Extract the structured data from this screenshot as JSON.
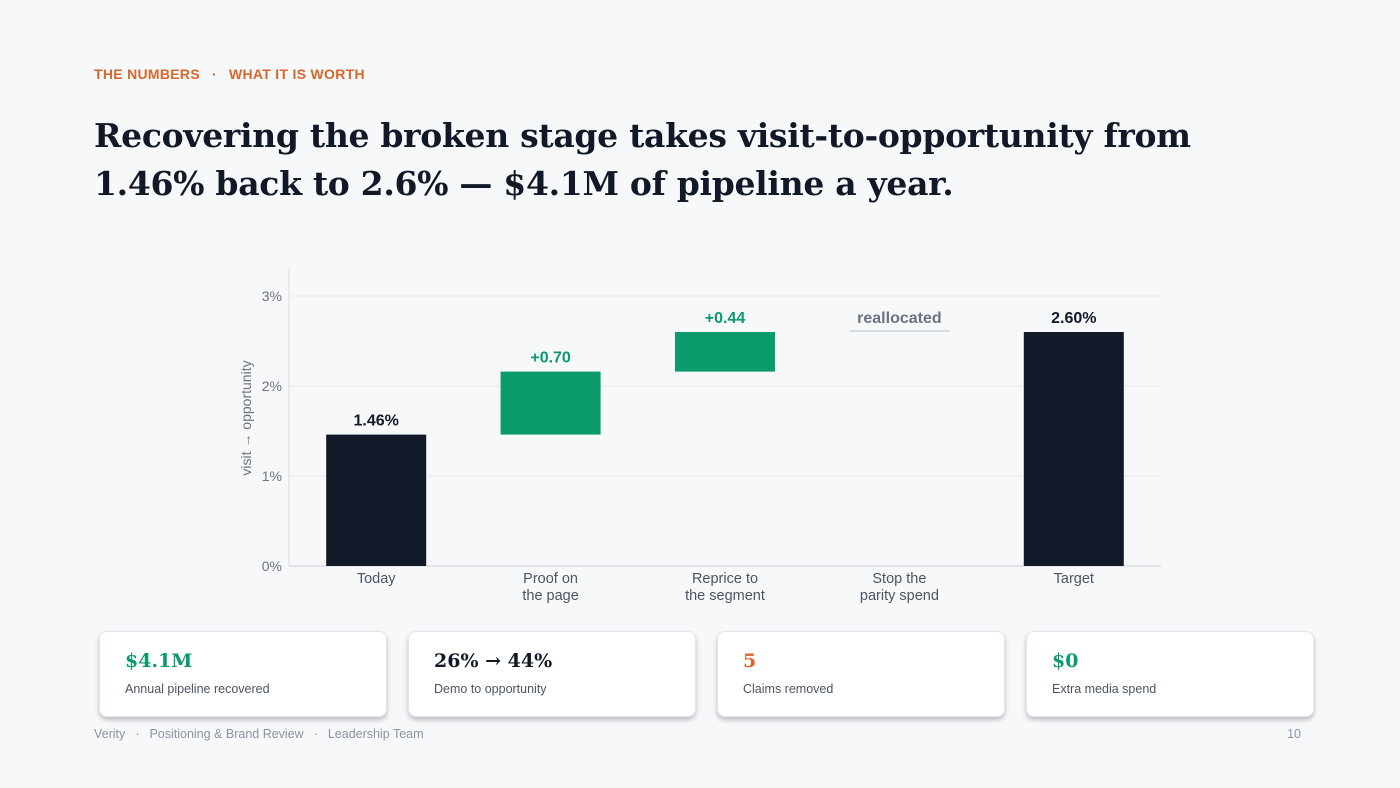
{
  "eyebrow": {
    "section": "THE NUMBERS",
    "separator": "·",
    "subsection": "WHAT IT IS WORTH"
  },
  "headline": "Recovering the broken stage takes visit-to-opportunity from 1.46% back to 2.6% — $4.1M of pipeline a year.",
  "colors": {
    "accent": "#d9662a",
    "dark": "#111827",
    "green": "#0a9a6c",
    "muted": "#8a94a3"
  },
  "chart_data": {
    "type": "bar",
    "subtype": "waterfall",
    "ylabel": "visit → opportunity",
    "ylim": [
      0,
      3
    ],
    "yticks": [
      0,
      1,
      2,
      3
    ],
    "ytick_labels": [
      "0%",
      "1%",
      "2%",
      "3%"
    ],
    "grid": true,
    "categories": [
      [
        "Today"
      ],
      [
        "Proof on",
        "the page"
      ],
      [
        "Reprice to",
        "the segment"
      ],
      [
        "Stop the",
        "parity spend"
      ],
      [
        "Target"
      ]
    ],
    "bars": [
      {
        "kind": "total",
        "start": 0,
        "end": 1.46,
        "label": "1.46%"
      },
      {
        "kind": "delta",
        "start": 1.46,
        "end": 2.16,
        "label": "+0.70"
      },
      {
        "kind": "delta",
        "start": 2.16,
        "end": 2.6,
        "label": "+0.44"
      },
      {
        "kind": "note",
        "start": 2.6,
        "end": 2.6,
        "label": "reallocated"
      },
      {
        "kind": "total",
        "start": 0,
        "end": 2.6,
        "label": "2.60%"
      }
    ]
  },
  "cards": [
    {
      "value": "$4.1M",
      "label": "Annual pipeline recovered",
      "color": "#0a9a6c"
    },
    {
      "value": "26% → 44%",
      "label": "Demo to opportunity",
      "color": "#111827"
    },
    {
      "value": "5",
      "label": "Claims removed",
      "color": "#d9662a"
    },
    {
      "value": "$0",
      "label": "Extra media spend",
      "color": "#0a9a6c"
    }
  ],
  "footer": {
    "brand": "Verity",
    "sep": "·",
    "deck": "Positioning & Brand Review",
    "audience": "Leadership Team",
    "page": "10"
  }
}
